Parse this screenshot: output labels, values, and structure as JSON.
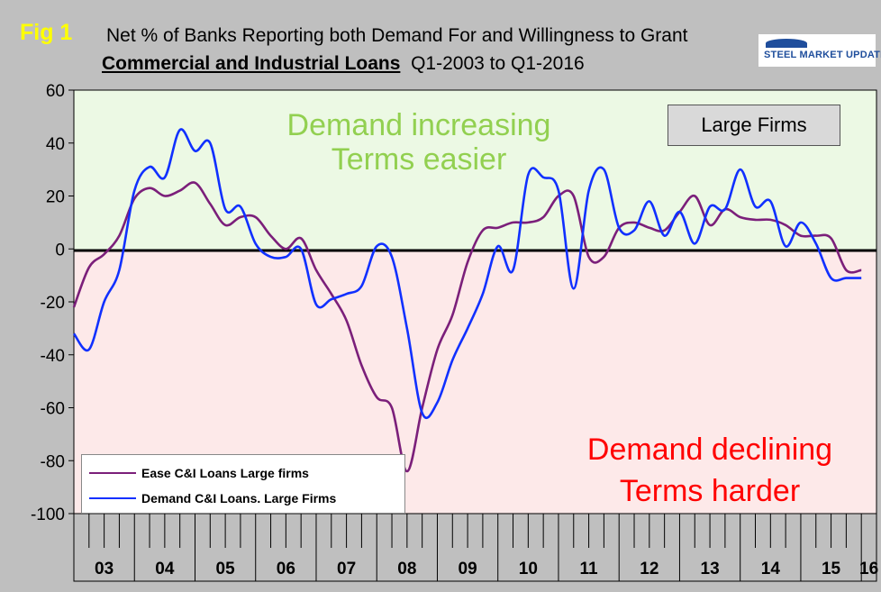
{
  "header": {
    "fig_label": "Fig 1",
    "title_line1": "Net % of Banks Reporting both Demand For and Willingness to Grant",
    "title_line2_bold": "Commercial and Industrial Loans",
    "title_line2_rest": "Q1-2003 to Q1-2016"
  },
  "logo": {
    "text": "STEEL MARKET UPDATE"
  },
  "badge": {
    "text": "Large Firms"
  },
  "annotations": {
    "upper_line1": "Demand increasing",
    "upper_line2": "Terms easier",
    "lower_line1": "Demand declining",
    "lower_line2": "Terms harder"
  },
  "colors": {
    "ease": "#7b1f7a",
    "demand": "#1030ff",
    "upper_fill": "#ecf9e4",
    "lower_fill": "#fde9e9",
    "frame": "#bfbfbf"
  },
  "chart_data": {
    "type": "line",
    "ylim": [
      -100,
      60
    ],
    "yticks": [
      -100,
      -80,
      -60,
      -40,
      -20,
      0,
      20,
      40,
      60
    ],
    "xlim": [
      2003.0,
      2016.25
    ],
    "year_labels": [
      "03",
      "04",
      "05",
      "06",
      "07",
      "08",
      "09",
      "10",
      "11",
      "12",
      "13",
      "14",
      "15",
      "16"
    ],
    "grid": false,
    "legend_position": "bottom-left",
    "series": [
      {
        "name": "Ease C&I Loans Large firms",
        "x": [
          2003.0,
          2003.25,
          2003.5,
          2003.75,
          2004.0,
          2004.25,
          2004.5,
          2004.75,
          2005.0,
          2005.25,
          2005.5,
          2005.75,
          2006.0,
          2006.25,
          2006.5,
          2006.75,
          2007.0,
          2007.25,
          2007.5,
          2007.75,
          2008.0,
          2008.25,
          2008.5,
          2008.75,
          2009.0,
          2009.25,
          2009.5,
          2009.75,
          2010.0,
          2010.25,
          2010.5,
          2010.75,
          2011.0,
          2011.25,
          2011.5,
          2011.75,
          2012.0,
          2012.25,
          2012.5,
          2012.75,
          2013.0,
          2013.25,
          2013.5,
          2013.75,
          2014.0,
          2014.25,
          2014.5,
          2014.75,
          2015.0,
          2015.25,
          2015.5,
          2015.75,
          2016.0
        ],
        "y": [
          -22,
          -7,
          -2,
          5,
          19,
          23,
          20,
          22,
          25,
          17,
          9,
          12,
          12,
          5,
          0,
          4,
          -8,
          -17,
          -27,
          -44,
          -56,
          -60,
          -84,
          -60,
          -38,
          -25,
          -5,
          7,
          8,
          10,
          10,
          12,
          20,
          20,
          -3,
          -3,
          8,
          10,
          8,
          7,
          14,
          20,
          9,
          15,
          12,
          11,
          11,
          9,
          5,
          5,
          4,
          -8,
          -8
        ]
      },
      {
        "name": "Demand C&I Loans. Large Firms",
        "x": [
          2003.0,
          2003.25,
          2003.5,
          2003.75,
          2004.0,
          2004.25,
          2004.5,
          2004.75,
          2005.0,
          2005.25,
          2005.5,
          2005.75,
          2006.0,
          2006.25,
          2006.5,
          2006.75,
          2007.0,
          2007.25,
          2007.5,
          2007.75,
          2008.0,
          2008.25,
          2008.5,
          2008.75,
          2009.0,
          2009.25,
          2009.5,
          2009.75,
          2010.0,
          2010.25,
          2010.5,
          2010.75,
          2011.0,
          2011.25,
          2011.5,
          2011.75,
          2012.0,
          2012.25,
          2012.5,
          2012.75,
          2013.0,
          2013.25,
          2013.5,
          2013.75,
          2014.0,
          2014.25,
          2014.5,
          2014.75,
          2015.0,
          2015.25,
          2015.5,
          2015.75,
          2016.0
        ],
        "y": [
          -32,
          -38,
          -20,
          -8,
          22,
          31,
          27,
          45,
          37,
          40,
          15,
          16,
          2,
          -3,
          -3,
          0,
          -21,
          -19,
          -17,
          -14,
          1,
          -3,
          -30,
          -62,
          -58,
          -42,
          -30,
          -17,
          1,
          -8,
          28,
          27,
          22,
          -15,
          22,
          30,
          8,
          7,
          18,
          5,
          14,
          2,
          16,
          15,
          30,
          16,
          18,
          1,
          10,
          2,
          -11,
          -11,
          -11
        ]
      }
    ]
  }
}
